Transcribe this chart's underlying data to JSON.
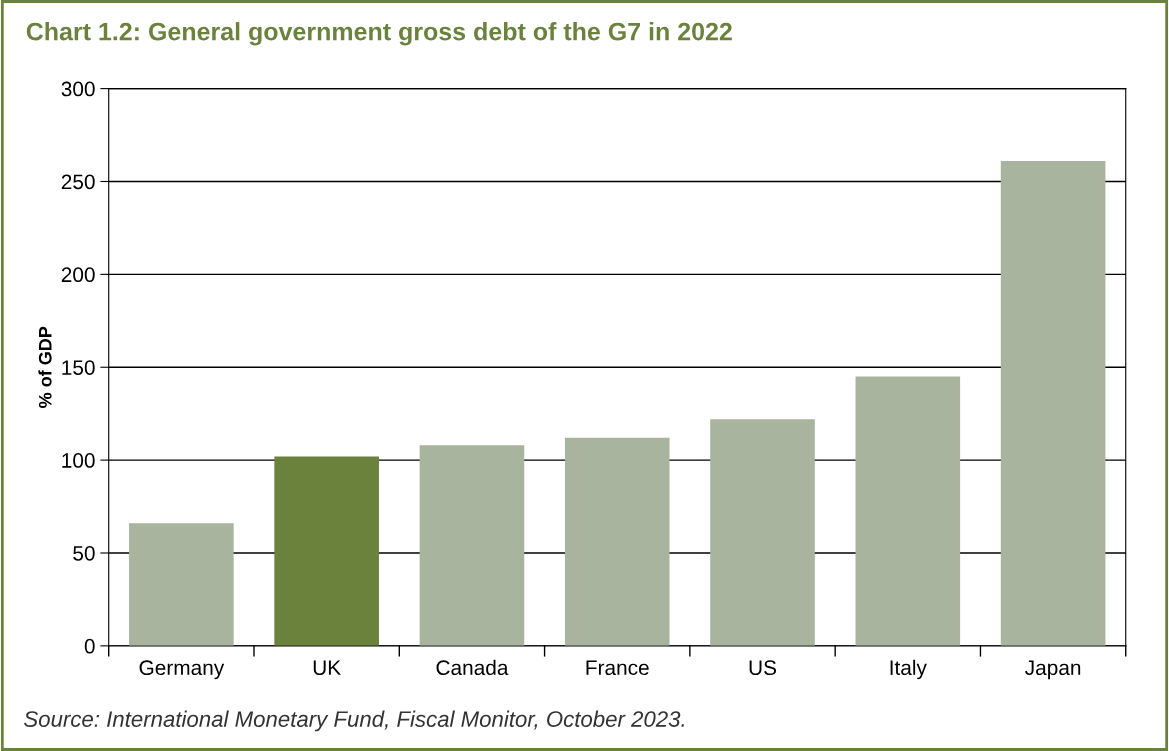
{
  "chart_data": {
    "type": "bar",
    "title": "Chart 1.2: General government gross debt of the G7 in 2022",
    "ylabel": "% of GDP",
    "categories": [
      "Germany",
      "UK",
      "Canada",
      "France",
      "US",
      "Italy",
      "Japan"
    ],
    "values": [
      66,
      102,
      108,
      112,
      122,
      145,
      261
    ],
    "colors": [
      "#a8b49e",
      "#6a823c",
      "#a8b49e",
      "#a8b49e",
      "#a8b49e",
      "#a8b49e",
      "#a8b49e"
    ],
    "ylim": [
      0,
      300
    ],
    "yticks": [
      0,
      50,
      100,
      150,
      200,
      250,
      300
    ],
    "grid": "y",
    "annotations": [
      "Source: International Monetary Fund, Fiscal Monitor, October 2023."
    ]
  }
}
